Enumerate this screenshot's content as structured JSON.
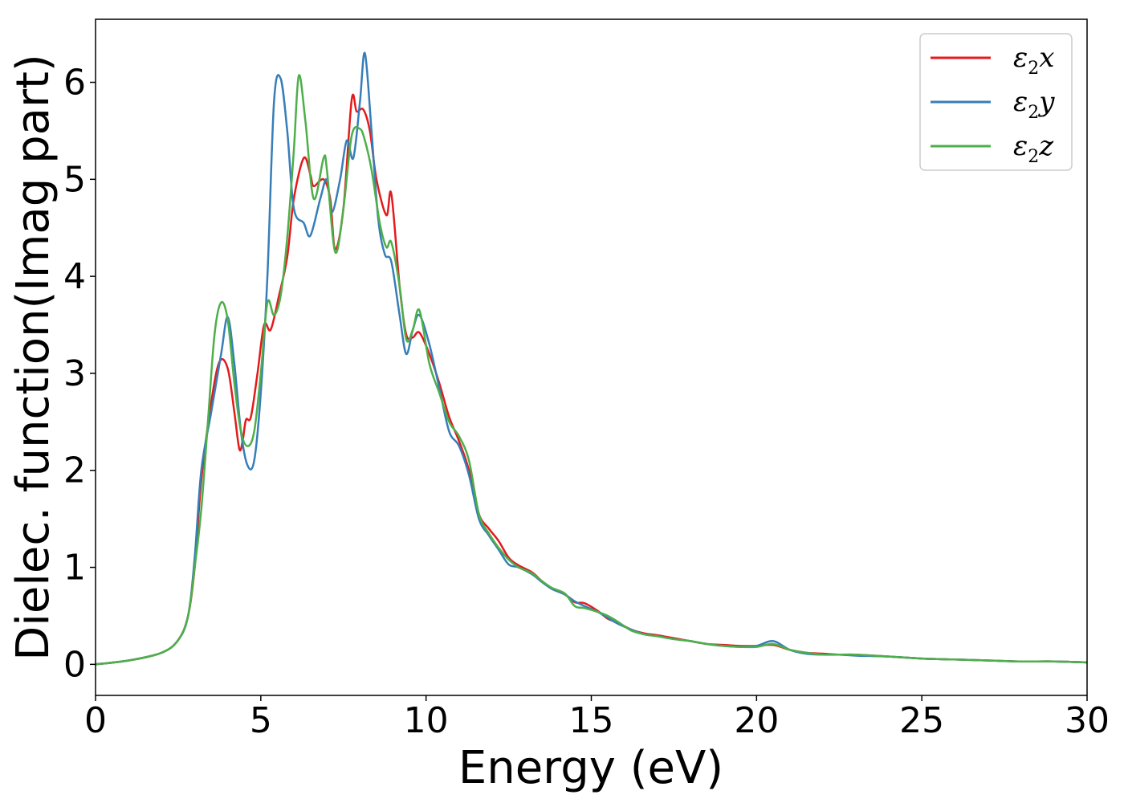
{
  "chart_data": {
    "type": "line",
    "title": "",
    "xlabel": "Energy (eV)",
    "ylabel": "Dielec. function(Imag part)",
    "xlim": [
      0,
      30
    ],
    "ylim": [
      -0.32,
      6.65
    ],
    "xticks": [
      0,
      5,
      10,
      15,
      20,
      25,
      30
    ],
    "yticks": [
      0,
      1,
      2,
      3,
      4,
      5,
      6
    ],
    "grid": false,
    "legend_position": "top-right",
    "series": [
      {
        "name": "ε2x",
        "legend_base": "ε",
        "legend_sub": "2",
        "legend_tail": "x",
        "color": "#e41a1c",
        "points": [
          [
            0,
            0.0
          ],
          [
            1,
            0.04
          ],
          [
            2,
            0.12
          ],
          [
            2.5,
            0.25
          ],
          [
            2.8,
            0.5
          ],
          [
            3.0,
            1.0
          ],
          [
            3.2,
            1.9
          ],
          [
            3.5,
            2.7
          ],
          [
            3.75,
            3.12
          ],
          [
            4.0,
            3.05
          ],
          [
            4.2,
            2.6
          ],
          [
            4.35,
            2.22
          ],
          [
            4.45,
            2.3
          ],
          [
            4.55,
            2.52
          ],
          [
            4.7,
            2.55
          ],
          [
            4.9,
            3.0
          ],
          [
            5.1,
            3.5
          ],
          [
            5.3,
            3.45
          ],
          [
            5.55,
            3.8
          ],
          [
            5.8,
            4.2
          ],
          [
            6.0,
            4.8
          ],
          [
            6.3,
            5.22
          ],
          [
            6.5,
            5.05
          ],
          [
            6.6,
            4.93
          ],
          [
            6.9,
            5.0
          ],
          [
            7.1,
            4.8
          ],
          [
            7.25,
            4.28
          ],
          [
            7.5,
            4.7
          ],
          [
            7.75,
            5.82
          ],
          [
            7.9,
            5.7
          ],
          [
            8.1,
            5.72
          ],
          [
            8.3,
            5.5
          ],
          [
            8.5,
            5.0
          ],
          [
            8.8,
            4.63
          ],
          [
            8.95,
            4.85
          ],
          [
            9.2,
            3.9
          ],
          [
            9.4,
            3.4
          ],
          [
            9.6,
            3.37
          ],
          [
            9.8,
            3.42
          ],
          [
            10.1,
            3.2
          ],
          [
            10.4,
            2.9
          ],
          [
            10.7,
            2.55
          ],
          [
            11.0,
            2.3
          ],
          [
            11.3,
            2.0
          ],
          [
            11.6,
            1.55
          ],
          [
            11.9,
            1.4
          ],
          [
            12.2,
            1.27
          ],
          [
            12.5,
            1.1
          ],
          [
            12.8,
            1.02
          ],
          [
            13.2,
            0.95
          ],
          [
            13.5,
            0.86
          ],
          [
            13.8,
            0.78
          ],
          [
            14.2,
            0.72
          ],
          [
            14.5,
            0.64
          ],
          [
            14.8,
            0.63
          ],
          [
            15.2,
            0.55
          ],
          [
            15.5,
            0.47
          ],
          [
            15.8,
            0.43
          ],
          [
            16.2,
            0.36
          ],
          [
            16.6,
            0.32
          ],
          [
            17.0,
            0.3
          ],
          [
            17.5,
            0.27
          ],
          [
            18.0,
            0.24
          ],
          [
            18.5,
            0.21
          ],
          [
            19.0,
            0.2
          ],
          [
            19.5,
            0.19
          ],
          [
            20.0,
            0.19
          ],
          [
            20.5,
            0.2
          ],
          [
            21.0,
            0.15
          ],
          [
            21.5,
            0.12
          ],
          [
            22.0,
            0.11
          ],
          [
            22.5,
            0.1
          ],
          [
            23.0,
            0.1
          ],
          [
            24.0,
            0.08
          ],
          [
            25.0,
            0.06
          ],
          [
            26.0,
            0.05
          ],
          [
            27.0,
            0.04
          ],
          [
            28.0,
            0.03
          ],
          [
            29.0,
            0.03
          ],
          [
            30.0,
            0.02
          ]
        ]
      },
      {
        "name": "ε2y",
        "legend_base": "ε",
        "legend_sub": "2",
        "legend_tail": "y",
        "color": "#377eb8",
        "points": [
          [
            0,
            0.0
          ],
          [
            1,
            0.04
          ],
          [
            2,
            0.12
          ],
          [
            2.5,
            0.25
          ],
          [
            2.8,
            0.5
          ],
          [
            3.0,
            1.1
          ],
          [
            3.2,
            2.0
          ],
          [
            3.5,
            2.6
          ],
          [
            3.8,
            3.2
          ],
          [
            4.0,
            3.58
          ],
          [
            4.2,
            3.1
          ],
          [
            4.4,
            2.4
          ],
          [
            4.6,
            2.05
          ],
          [
            4.8,
            2.1
          ],
          [
            5.0,
            2.8
          ],
          [
            5.2,
            4.0
          ],
          [
            5.4,
            5.8
          ],
          [
            5.6,
            6.04
          ],
          [
            5.8,
            5.5
          ],
          [
            6.0,
            4.7
          ],
          [
            6.3,
            4.55
          ],
          [
            6.5,
            4.42
          ],
          [
            6.8,
            4.8
          ],
          [
            7.0,
            5.0
          ],
          [
            7.15,
            4.66
          ],
          [
            7.4,
            5.0
          ],
          [
            7.6,
            5.4
          ],
          [
            7.8,
            5.22
          ],
          [
            8.0,
            5.8
          ],
          [
            8.15,
            6.3
          ],
          [
            8.35,
            5.5
          ],
          [
            8.55,
            4.6
          ],
          [
            8.75,
            4.23
          ],
          [
            8.95,
            4.15
          ],
          [
            9.2,
            3.6
          ],
          [
            9.4,
            3.2
          ],
          [
            9.6,
            3.45
          ],
          [
            9.8,
            3.6
          ],
          [
            10.1,
            3.3
          ],
          [
            10.4,
            2.85
          ],
          [
            10.7,
            2.4
          ],
          [
            11.0,
            2.25
          ],
          [
            11.3,
            1.95
          ],
          [
            11.6,
            1.5
          ],
          [
            11.9,
            1.33
          ],
          [
            12.2,
            1.18
          ],
          [
            12.5,
            1.03
          ],
          [
            12.8,
            1.0
          ],
          [
            13.2,
            0.93
          ],
          [
            13.5,
            0.85
          ],
          [
            13.8,
            0.78
          ],
          [
            14.2,
            0.72
          ],
          [
            14.5,
            0.65
          ],
          [
            14.8,
            0.6
          ],
          [
            15.2,
            0.54
          ],
          [
            15.5,
            0.48
          ],
          [
            15.8,
            0.42
          ],
          [
            16.2,
            0.36
          ],
          [
            16.6,
            0.31
          ],
          [
            17.0,
            0.29
          ],
          [
            17.5,
            0.26
          ],
          [
            18.0,
            0.24
          ],
          [
            18.5,
            0.21
          ],
          [
            19.0,
            0.19
          ],
          [
            19.5,
            0.18
          ],
          [
            20.0,
            0.19
          ],
          [
            20.5,
            0.24
          ],
          [
            21.0,
            0.15
          ],
          [
            21.5,
            0.11
          ],
          [
            22.0,
            0.1
          ],
          [
            22.5,
            0.1
          ],
          [
            23.0,
            0.09
          ],
          [
            24.0,
            0.08
          ],
          [
            25.0,
            0.06
          ],
          [
            26.0,
            0.05
          ],
          [
            27.0,
            0.04
          ],
          [
            28.0,
            0.03
          ],
          [
            29.0,
            0.03
          ],
          [
            30.0,
            0.02
          ]
        ]
      },
      {
        "name": "ε2z",
        "legend_base": "ε",
        "legend_sub": "2",
        "legend_tail": "z",
        "color": "#4daf4a",
        "points": [
          [
            0,
            0.0
          ],
          [
            1,
            0.04
          ],
          [
            2,
            0.12
          ],
          [
            2.5,
            0.25
          ],
          [
            2.8,
            0.5
          ],
          [
            3.0,
            1.0
          ],
          [
            3.2,
            1.6
          ],
          [
            3.4,
            2.5
          ],
          [
            3.6,
            3.4
          ],
          [
            3.8,
            3.73
          ],
          [
            4.0,
            3.55
          ],
          [
            4.2,
            2.9
          ],
          [
            4.4,
            2.4
          ],
          [
            4.6,
            2.25
          ],
          [
            4.8,
            2.4
          ],
          [
            5.0,
            3.0
          ],
          [
            5.2,
            3.73
          ],
          [
            5.4,
            3.6
          ],
          [
            5.6,
            3.8
          ],
          [
            5.8,
            4.4
          ],
          [
            6.0,
            5.3
          ],
          [
            6.15,
            6.07
          ],
          [
            6.35,
            5.6
          ],
          [
            6.6,
            4.8
          ],
          [
            6.9,
            5.22
          ],
          [
            7.0,
            5.1
          ],
          [
            7.25,
            4.25
          ],
          [
            7.5,
            4.7
          ],
          [
            7.75,
            5.45
          ],
          [
            8.0,
            5.52
          ],
          [
            8.15,
            5.4
          ],
          [
            8.35,
            5.1
          ],
          [
            8.6,
            4.55
          ],
          [
            8.8,
            4.3
          ],
          [
            8.95,
            4.35
          ],
          [
            9.2,
            3.9
          ],
          [
            9.4,
            3.35
          ],
          [
            9.6,
            3.45
          ],
          [
            9.8,
            3.65
          ],
          [
            10.1,
            3.1
          ],
          [
            10.4,
            2.8
          ],
          [
            10.7,
            2.5
          ],
          [
            11.0,
            2.35
          ],
          [
            11.3,
            2.1
          ],
          [
            11.6,
            1.55
          ],
          [
            11.9,
            1.35
          ],
          [
            12.2,
            1.2
          ],
          [
            12.5,
            1.08
          ],
          [
            12.8,
            1.0
          ],
          [
            13.2,
            0.94
          ],
          [
            13.5,
            0.86
          ],
          [
            13.8,
            0.79
          ],
          [
            14.2,
            0.73
          ],
          [
            14.5,
            0.6
          ],
          [
            14.8,
            0.58
          ],
          [
            15.2,
            0.54
          ],
          [
            15.5,
            0.5
          ],
          [
            15.8,
            0.44
          ],
          [
            16.2,
            0.35
          ],
          [
            16.6,
            0.31
          ],
          [
            17.0,
            0.29
          ],
          [
            17.5,
            0.26
          ],
          [
            18.0,
            0.24
          ],
          [
            18.5,
            0.21
          ],
          [
            19.0,
            0.19
          ],
          [
            19.5,
            0.18
          ],
          [
            20.0,
            0.18
          ],
          [
            20.5,
            0.21
          ],
          [
            21.0,
            0.15
          ],
          [
            21.5,
            0.12
          ],
          [
            22.0,
            0.1
          ],
          [
            22.5,
            0.1
          ],
          [
            23.0,
            0.1
          ],
          [
            24.0,
            0.08
          ],
          [
            25.0,
            0.06
          ],
          [
            26.0,
            0.05
          ],
          [
            27.0,
            0.04
          ],
          [
            28.0,
            0.03
          ],
          [
            29.0,
            0.03
          ],
          [
            30.0,
            0.02
          ]
        ]
      }
    ]
  }
}
